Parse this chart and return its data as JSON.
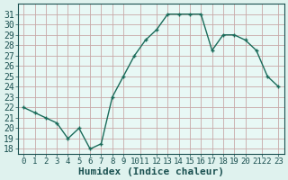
{
  "x": [
    0,
    1,
    2,
    3,
    4,
    5,
    6,
    7,
    8,
    9,
    10,
    11,
    12,
    13,
    14,
    15,
    16,
    17,
    18,
    19,
    20,
    21,
    22,
    23
  ],
  "y": [
    22,
    21.5,
    21,
    20.5,
    19,
    20,
    18,
    18.5,
    23,
    25,
    27,
    28.5,
    29.5,
    31,
    31,
    31,
    31,
    27.5,
    29,
    29,
    28.5,
    27.5,
    25,
    24
  ],
  "line_color": "#1a6b5a",
  "marker": "+",
  "bg_color": "#dff2ee",
  "plot_bg_color": "#e8f8f5",
  "grid_color": "#c8a8a8",
  "tick_color": "#1a5050",
  "label_color": "#1a5050",
  "xlabel": "Humidex (Indice chaleur)",
  "ylim": [
    17.5,
    32
  ],
  "yticks": [
    18,
    19,
    20,
    21,
    22,
    23,
    24,
    25,
    26,
    27,
    28,
    29,
    30,
    31
  ],
  "font_size": 7.0,
  "xlabel_font_size": 8.0,
  "line_width": 1.0,
  "marker_size": 3.5
}
